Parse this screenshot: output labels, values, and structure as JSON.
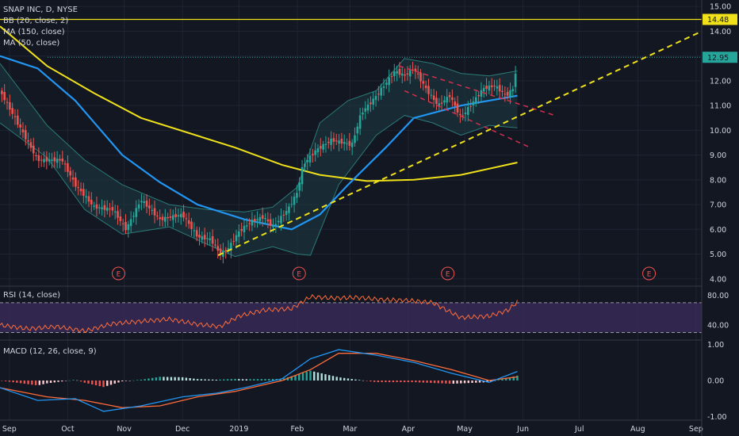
{
  "chart_data": {
    "type": "candlestick",
    "symbol_title": "SNAP INC, D, NYSE",
    "indicators": {
      "bb": "BB (20, close, 2)",
      "ma150": "MA (150, close)",
      "ma50": "MA (50, close)",
      "rsi": "RSI (14, close)",
      "macd": "MACD (12, 26, close, 9)"
    },
    "price_axis": {
      "range": [
        3.8,
        15.2
      ],
      "ticks": [
        "15.00",
        "14.00",
        "13.00",
        "12.00",
        "11.00",
        "10.00",
        "9.00",
        "8.00",
        "7.00",
        "6.00",
        "5.00",
        "4.00"
      ]
    },
    "rsi_axis": {
      "range": [
        22,
        90
      ],
      "ticks": [
        "80.00",
        "40.00"
      ],
      "bands": [
        70,
        30
      ]
    },
    "macd_axis": {
      "range": [
        -1.05,
        1.05
      ],
      "ticks": [
        "1.00",
        "0.00",
        "-1.00"
      ]
    },
    "x_axis": {
      "labels": [
        "Sep",
        "Oct",
        "Nov",
        "Dec",
        "2019",
        "Feb",
        "Mar",
        "Apr",
        "May",
        "Jun",
        "Jul",
        "Aug",
        "Sep"
      ],
      "label_days": [
        0,
        31,
        61,
        92,
        122,
        153,
        181,
        212,
        242,
        273,
        303,
        334,
        365
      ],
      "day_range": [
        -5,
        368
      ]
    },
    "levels": {
      "resistance": {
        "value": 14.48,
        "label": "14.48",
        "color": "#f0e11a"
      },
      "last_price": {
        "value": 12.95,
        "label": "12.95",
        "color": "#26a69a"
      }
    },
    "earnings": {
      "label": "E",
      "days": [
        58,
        154,
        233,
        340
      ]
    },
    "colors": {
      "up": "#26a69a",
      "down": "#ef5350",
      "ma150": "#f0e11a",
      "ma50": "#2196f3",
      "bb_fill": "#1d3a42",
      "rsi_line": "#ff6d3a",
      "rsi_band": "#3a2a5a",
      "macd": "#2196f3",
      "signal": "#ff6d3a",
      "trend": "#f0e11a",
      "channel": "#d32f4f"
    },
    "price_path": [
      [
        -5,
        11.6
      ],
      [
        5,
        10.2
      ],
      [
        15,
        8.8
      ],
      [
        28,
        8.8
      ],
      [
        35,
        7.8
      ],
      [
        45,
        6.9
      ],
      [
        55,
        6.8
      ],
      [
        62,
        6.0
      ],
      [
        70,
        7.2
      ],
      [
        80,
        6.4
      ],
      [
        92,
        6.6
      ],
      [
        100,
        5.7
      ],
      [
        107,
        5.6
      ],
      [
        112,
        5.0
      ],
      [
        116,
        5.2
      ],
      [
        122,
        5.9
      ],
      [
        128,
        6.3
      ],
      [
        135,
        6.5
      ],
      [
        140,
        6.1
      ],
      [
        148,
        6.8
      ],
      [
        153,
        7.5
      ],
      [
        156,
        8.6
      ],
      [
        163,
        9.2
      ],
      [
        171,
        9.6
      ],
      [
        178,
        9.5
      ],
      [
        182,
        9.4
      ],
      [
        187,
        10.7
      ],
      [
        193,
        11.2
      ],
      [
        200,
        11.9
      ],
      [
        205,
        12.4
      ],
      [
        210,
        12.2
      ],
      [
        215,
        12.5
      ],
      [
        222,
        11.6
      ],
      [
        228,
        11.0
      ],
      [
        234,
        11.4
      ],
      [
        240,
        10.5
      ],
      [
        246,
        11.1
      ],
      [
        252,
        11.7
      ],
      [
        258,
        11.8
      ],
      [
        264,
        11.4
      ],
      [
        268,
        11.7
      ],
      [
        270,
        12.95
      ]
    ],
    "ma150_path": [
      [
        -5,
        14.2
      ],
      [
        20,
        12.6
      ],
      [
        45,
        11.5
      ],
      [
        70,
        10.5
      ],
      [
        95,
        9.9
      ],
      [
        120,
        9.3
      ],
      [
        145,
        8.6
      ],
      [
        165,
        8.2
      ],
      [
        190,
        7.95
      ],
      [
        215,
        8.0
      ],
      [
        240,
        8.2
      ],
      [
        270,
        8.7
      ]
    ],
    "ma50_path": [
      [
        -5,
        13.0
      ],
      [
        15,
        12.5
      ],
      [
        35,
        11.2
      ],
      [
        60,
        9.0
      ],
      [
        80,
        7.9
      ],
      [
        100,
        7.0
      ],
      [
        125,
        6.4
      ],
      [
        150,
        6.0
      ],
      [
        165,
        6.6
      ],
      [
        180,
        7.8
      ],
      [
        200,
        9.3
      ],
      [
        215,
        10.5
      ],
      [
        240,
        11.0
      ],
      [
        255,
        11.2
      ],
      [
        270,
        11.4
      ]
    ],
    "bb_upper_path": [
      [
        -5,
        12.7
      ],
      [
        20,
        10.2
      ],
      [
        40,
        8.8
      ],
      [
        60,
        7.8
      ],
      [
        85,
        7.0
      ],
      [
        105,
        6.8
      ],
      [
        125,
        6.7
      ],
      [
        140,
        6.9
      ],
      [
        153,
        7.7
      ],
      [
        165,
        10.3
      ],
      [
        180,
        11.2
      ],
      [
        195,
        11.6
      ],
      [
        210,
        12.9
      ],
      [
        225,
        12.7
      ],
      [
        240,
        12.3
      ],
      [
        255,
        12.2
      ],
      [
        270,
        12.4
      ]
    ],
    "bb_lower_path": [
      [
        -5,
        10.3
      ],
      [
        20,
        8.9
      ],
      [
        40,
        6.8
      ],
      [
        60,
        5.8
      ],
      [
        85,
        6.1
      ],
      [
        105,
        5.4
      ],
      [
        120,
        4.9
      ],
      [
        140,
        5.3
      ],
      [
        153,
        5.0
      ],
      [
        160,
        4.95
      ],
      [
        175,
        7.8
      ],
      [
        195,
        9.8
      ],
      [
        210,
        10.6
      ],
      [
        225,
        10.3
      ],
      [
        240,
        9.8
      ],
      [
        255,
        10.2
      ],
      [
        270,
        10.1
      ]
    ],
    "trendline": {
      "start": [
        111,
        4.95
      ],
      "end": [
        368,
        14.0
      ]
    },
    "channel_upper": {
      "start": [
        207,
        12.6
      ],
      "end": [
        290,
        10.6
      ]
    },
    "channel_lower": {
      "start": [
        210,
        11.6
      ],
      "end": [
        277,
        9.3
      ]
    },
    "rsi_path": [
      [
        -5,
        40
      ],
      [
        10,
        35
      ],
      [
        25,
        38
      ],
      [
        40,
        32
      ],
      [
        55,
        42
      ],
      [
        70,
        45
      ],
      [
        85,
        48
      ],
      [
        100,
        41
      ],
      [
        112,
        38
      ],
      [
        122,
        52
      ],
      [
        135,
        60
      ],
      [
        150,
        62
      ],
      [
        160,
        78
      ],
      [
        172,
        76
      ],
      [
        185,
        77
      ],
      [
        198,
        74
      ],
      [
        212,
        73
      ],
      [
        225,
        70
      ],
      [
        240,
        50
      ],
      [
        255,
        52
      ],
      [
        265,
        60
      ],
      [
        270,
        71
      ]
    ],
    "macd_path": [
      [
        -5,
        -0.2
      ],
      [
        15,
        -0.55
      ],
      [
        35,
        -0.5
      ],
      [
        50,
        -0.85
      ],
      [
        70,
        -0.7
      ],
      [
        92,
        -0.45
      ],
      [
        110,
        -0.35
      ],
      [
        125,
        -0.2
      ],
      [
        145,
        0.05
      ],
      [
        160,
        0.6
      ],
      [
        175,
        0.85
      ],
      [
        195,
        0.7
      ],
      [
        215,
        0.5
      ],
      [
        235,
        0.2
      ],
      [
        255,
        -0.05
      ],
      [
        270,
        0.25
      ]
    ],
    "signal_path": [
      [
        -5,
        -0.2
      ],
      [
        20,
        -0.45
      ],
      [
        40,
        -0.55
      ],
      [
        60,
        -0.75
      ],
      [
        80,
        -0.7
      ],
      [
        100,
        -0.45
      ],
      [
        120,
        -0.3
      ],
      [
        145,
        0.0
      ],
      [
        160,
        0.3
      ],
      [
        175,
        0.75
      ],
      [
        195,
        0.75
      ],
      [
        215,
        0.55
      ],
      [
        235,
        0.3
      ],
      [
        255,
        0.0
      ],
      [
        270,
        0.1
      ]
    ]
  }
}
